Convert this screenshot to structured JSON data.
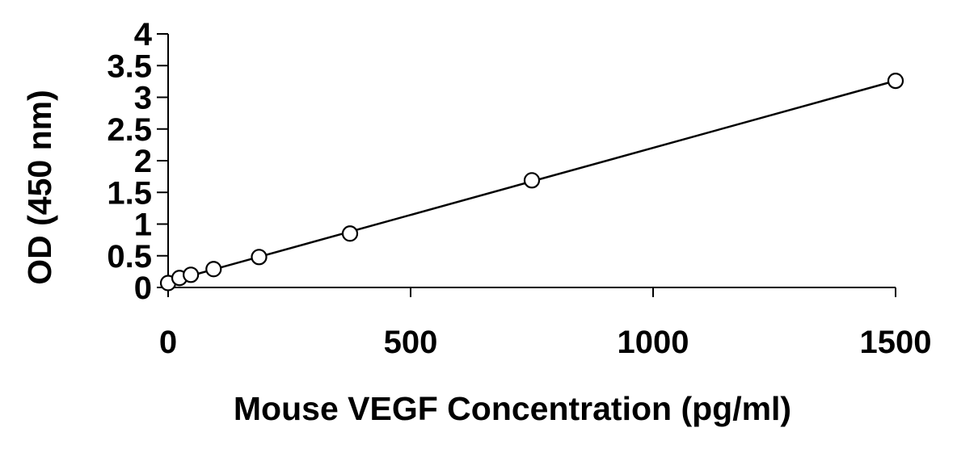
{
  "chart_data": {
    "type": "scatter",
    "title": "",
    "xlabel": "Mouse VEGF Concentration (pg/ml)",
    "ylabel": "OD (450 nm)",
    "xlim": [
      0,
      1500
    ],
    "ylim": [
      0,
      4
    ],
    "x_ticks": [
      "0",
      "500",
      "1000",
      "1500"
    ],
    "y_ticks": [
      "0",
      "0.5",
      "1",
      "1.5",
      "2",
      "2.5",
      "3",
      "3.5",
      "4"
    ],
    "grid": false,
    "legend": "none",
    "series": [
      {
        "x": [
          0,
          23.4,
          46.9,
          93.8,
          187.5,
          375,
          750,
          1500
        ],
        "y": [
          0.07,
          0.15,
          0.2,
          0.29,
          0.48,
          0.85,
          1.69,
          3.26
        ],
        "marker": "open-circle",
        "trendline": "linear"
      }
    ],
    "colors": {
      "line": "#000000",
      "marker_stroke": "#000000",
      "marker_fill": "#ffffff",
      "axis": "#000000"
    }
  }
}
